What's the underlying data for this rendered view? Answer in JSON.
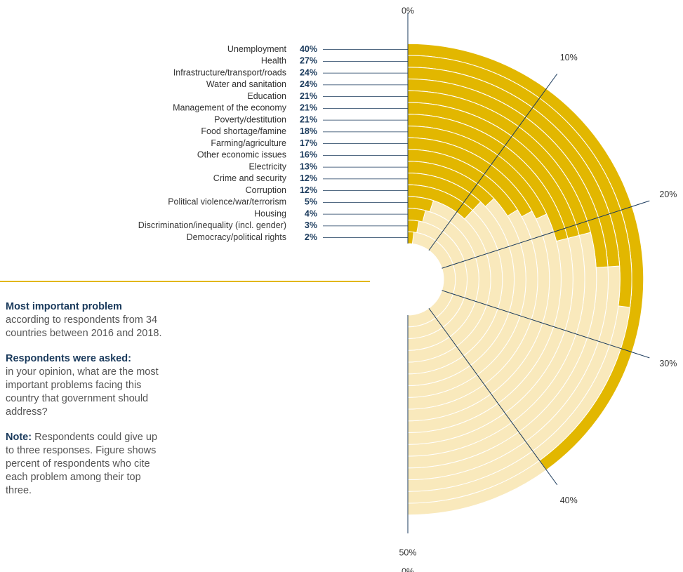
{
  "chart_data": {
    "type": "radial_bar",
    "categories": [
      "Unemployment",
      "Health",
      "Infrastructure/transport/roads",
      "Water and sanitation",
      "Education",
      "Management of the economy",
      "Poverty/destitution",
      "Food shortage/famine",
      "Farming/agriculture",
      "Other economic issues",
      "Electricity",
      "Crime and security",
      "Corruption",
      "Political violence/war/terrorism",
      "Housing",
      "Discrimination/inequality (incl. gender)",
      "Democracy/political rights"
    ],
    "values": [
      40,
      27,
      24,
      24,
      21,
      21,
      21,
      18,
      17,
      16,
      13,
      12,
      12,
      5,
      4,
      3,
      2
    ],
    "value_labels": [
      "40%",
      "27%",
      "24%",
      "24%",
      "21%",
      "21%",
      "21%",
      "18%",
      "17%",
      "16%",
      "13%",
      "12%",
      "12%",
      "5%",
      "4%",
      "3%",
      "2%"
    ],
    "color": "#e2b700",
    "track_color": "#f9e9bc",
    "xlim": [
      0,
      50
    ],
    "xticks": [
      {
        "value": 0,
        "label": "0%"
      },
      {
        "value": 10,
        "label": "10%"
      },
      {
        "value": 20,
        "label": "20%"
      },
      {
        "value": 30,
        "label": "30%"
      },
      {
        "value": 40,
        "label": "40%"
      },
      {
        "value": 50,
        "label": "50%"
      }
    ],
    "footer_label": "0%"
  },
  "notes": [
    {
      "heading": "Most important problem",
      "text": "according to respondents from 34 countries between 2016 and 2018."
    },
    {
      "heading": "Respondents were asked:",
      "text": "in your opinion, what are the most important problems facing this country that government should address?"
    },
    {
      "heading": "Note:",
      "text": "Respondents could give up to three responses. Figure shows percent of respondents who cite each problem among their top three."
    }
  ]
}
